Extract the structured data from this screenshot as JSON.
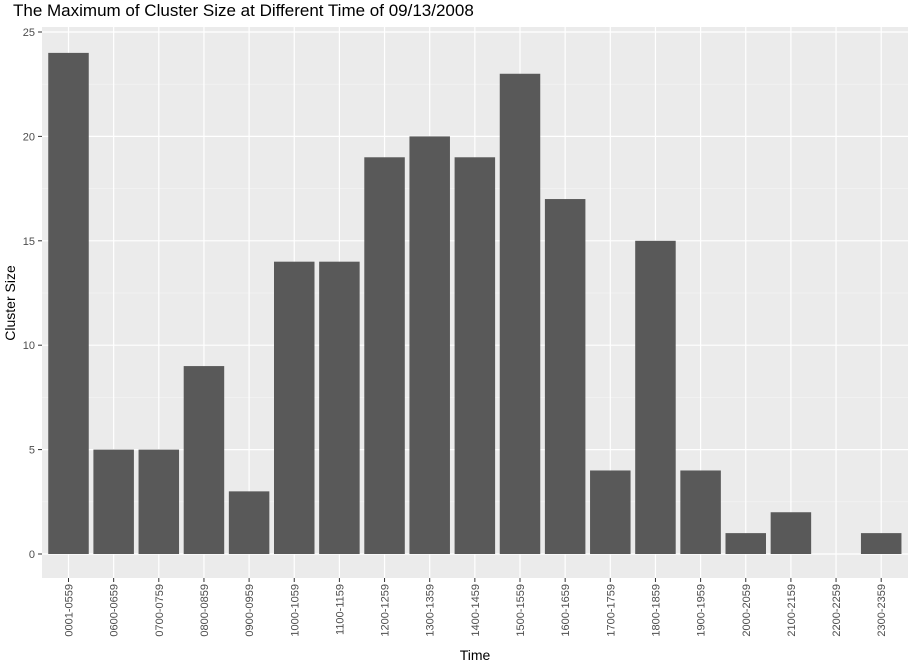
{
  "chart_data": {
    "type": "bar",
    "title": "The Maximum of Cluster Size at Different Time of 09/13/2008",
    "xlabel": "Time",
    "ylabel": "Cluster Size",
    "categories": [
      "0001-0559",
      "0600-0659",
      "0700-0759",
      "0800-0859",
      "0900-0959",
      "1000-1059",
      "1100-1159",
      "1200-1259",
      "1300-1359",
      "1400-1459",
      "1500-1559",
      "1600-1659",
      "1700-1759",
      "1800-1859",
      "1900-1959",
      "2000-2059",
      "2100-2159",
      "2200-2259",
      "2300-2359"
    ],
    "values": [
      24,
      5,
      5,
      9,
      3,
      14,
      14,
      19,
      20,
      19,
      23,
      17,
      4,
      15,
      4,
      1,
      2,
      0,
      1
    ],
    "ylim": [
      0,
      25
    ],
    "yticks": [
      "0",
      "5",
      "10",
      "15",
      "20",
      "25"
    ],
    "grid": true,
    "colors": {
      "bar": "#595959",
      "panel": "#ebebeb",
      "grid_major": "#ffffff",
      "grid_minor": "#f5f5f5",
      "tick_text": "#4d4d4d"
    }
  }
}
